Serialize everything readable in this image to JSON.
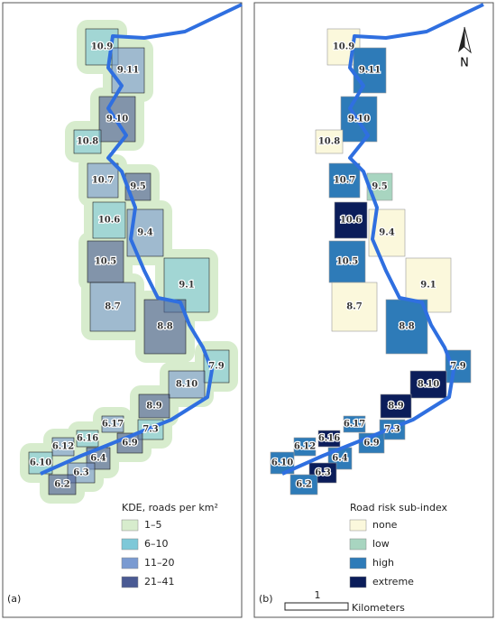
{
  "panels": [
    {
      "label": "(a)",
      "legend": {
        "title": "KDE, roads per km²",
        "items": [
          {
            "label": "1–5",
            "color": "#d7eccd"
          },
          {
            "label": "6–10",
            "color": "#7ec8d8"
          },
          {
            "label": "11–20",
            "color": "#7a9ad1"
          },
          {
            "label": "21–41",
            "color": "#4a5a93"
          }
        ]
      }
    },
    {
      "label": "(b)",
      "legend": {
        "title": "Road risk sub-index",
        "items": [
          {
            "label": "none",
            "color": "#fbf8dc"
          },
          {
            "label": "low",
            "color": "#a8d5c0"
          },
          {
            "label": "high",
            "color": "#2e7bb8"
          },
          {
            "label": "extreme",
            "color": "#0b1d5a"
          }
        ]
      }
    }
  ],
  "zones": [
    {
      "label": "10.9",
      "risk": "none"
    },
    {
      "label": "9.11",
      "risk": "high"
    },
    {
      "label": "9.10",
      "risk": "high"
    },
    {
      "label": "10.8",
      "risk": "none"
    },
    {
      "label": "10.7",
      "risk": "high"
    },
    {
      "label": "9.5",
      "risk": "low"
    },
    {
      "label": "10.6",
      "risk": "extreme"
    },
    {
      "label": "9.4",
      "risk": "none"
    },
    {
      "label": "10.5",
      "risk": "high"
    },
    {
      "label": "9.1",
      "risk": "none"
    },
    {
      "label": "8.7",
      "risk": "none"
    },
    {
      "label": "8.8",
      "risk": "high"
    },
    {
      "label": "7.9",
      "risk": "high"
    },
    {
      "label": "8.10",
      "risk": "extreme"
    },
    {
      "label": "8.9",
      "risk": "extreme"
    },
    {
      "label": "7.3",
      "risk": "high"
    },
    {
      "label": "6.17",
      "risk": "high"
    },
    {
      "label": "6.9",
      "risk": "high"
    },
    {
      "label": "6.16",
      "risk": "extreme"
    },
    {
      "label": "6.12",
      "risk": "high"
    },
    {
      "label": "6.4",
      "risk": "high"
    },
    {
      "label": "6.10",
      "risk": "high"
    },
    {
      "label": "6.3",
      "risk": "extreme"
    },
    {
      "label": "6.2",
      "risk": "high"
    }
  ],
  "scale_bar": {
    "distance": "1",
    "unit": "Kilometers"
  },
  "north": "N"
}
